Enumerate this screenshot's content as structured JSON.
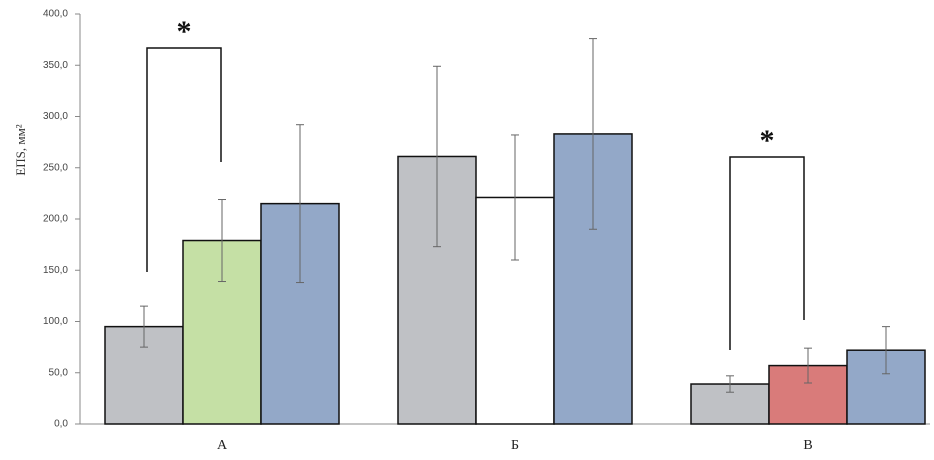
{
  "chart_data": {
    "type": "bar",
    "y_label": "ЕПS, мм²",
    "categories": [
      "А",
      "Б",
      "В"
    ],
    "series": [
      {
        "colors": [
          "#bfc1c5",
          "#bfc1c5",
          "#bfc1c5"
        ],
        "values": [
          95,
          261,
          39
        ],
        "errors": [
          20,
          88,
          8
        ]
      },
      {
        "colors": [
          "#c5e0a5",
          "#ffffff",
          "#d97b7a"
        ],
        "values": [
          179,
          221,
          57
        ],
        "errors": [
          40,
          61,
          17
        ]
      },
      {
        "colors": [
          "#93a8c8",
          "#93a8c8",
          "#93a8c8"
        ],
        "values": [
          215,
          283,
          72
        ],
        "errors": [
          77,
          93,
          23
        ]
      }
    ],
    "ylim": [
      0,
      400
    ],
    "yticks": [
      {
        "value": 0,
        "label": "0,0"
      },
      {
        "value": 50,
        "label": "50,0"
      },
      {
        "value": 100,
        "label": "100,0"
      },
      {
        "value": 150,
        "label": "150,0"
      },
      {
        "value": 200,
        "label": "200,0"
      },
      {
        "value": 250,
        "label": "250,0"
      },
      {
        "value": 300,
        "label": "300,0"
      },
      {
        "value": 350,
        "label": "350,0"
      },
      {
        "value": 400,
        "label": "400,0"
      }
    ],
    "annotations": [
      "*",
      "*"
    ]
  }
}
